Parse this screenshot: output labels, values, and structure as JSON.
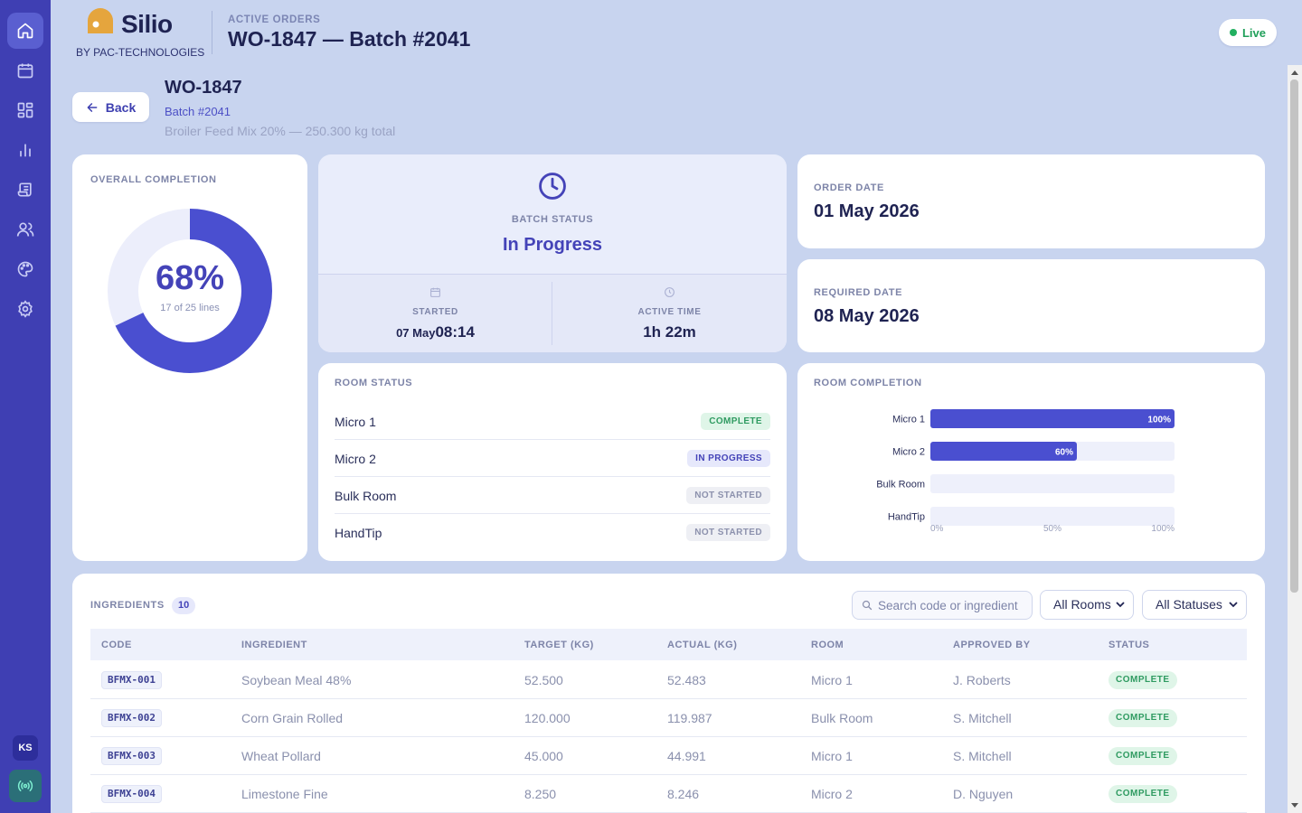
{
  "brand": {
    "name": "Silio",
    "sub": "BY PAC-TECHNOLOGIES",
    "accent": "#4443b8",
    "logo_color": "#e5a53d"
  },
  "header": {
    "kicker": "ACTIVE ORDERS",
    "title": "WO-1847 — Batch #2041",
    "live_label": "Live"
  },
  "sidebar": {
    "items": [
      {
        "icon": "home-icon",
        "active": true
      },
      {
        "icon": "calendar-icon"
      },
      {
        "icon": "dashboard-icon"
      },
      {
        "icon": "bar-chart-icon"
      },
      {
        "icon": "scroll-icon"
      },
      {
        "icon": "users-icon"
      },
      {
        "icon": "palette-icon"
      },
      {
        "icon": "gear-icon"
      }
    ],
    "avatar": "KS",
    "broadcast_icon": "broadcast-icon"
  },
  "order": {
    "back_label": "Back",
    "id": "WO-1847",
    "batch": "Batch #2041",
    "description": "Broiler Feed Mix 20% — 250.300 kg total"
  },
  "completion": {
    "label": "OVERALL COMPLETION",
    "percent": "68%",
    "fraction": 0.68,
    "sub": "17 of 25 lines"
  },
  "batch_status": {
    "label": "BATCH STATUS",
    "value": "In Progress",
    "started_label": "STARTED",
    "started_date": "07 May",
    "started_time": "08:14",
    "active_label": "ACTIVE TIME",
    "active_value": "1h 22m"
  },
  "dates": {
    "order_label": "ORDER DATE",
    "order_value": "01 May 2026",
    "required_label": "REQUIRED DATE",
    "required_value": "08 May 2026"
  },
  "room_status": {
    "label": "ROOM STATUS",
    "rooms": [
      {
        "name": "Micro 1",
        "status": "COMPLETE"
      },
      {
        "name": "Micro 2",
        "status": "IN PROGRESS"
      },
      {
        "name": "Bulk Room",
        "status": "NOT STARTED"
      },
      {
        "name": "HandTip",
        "status": "NOT STARTED"
      }
    ]
  },
  "room_completion": {
    "label": "ROOM COMPLETION",
    "chart_data": {
      "type": "bar",
      "orientation": "horizontal",
      "categories": [
        "Micro 1",
        "Micro 2",
        "Bulk Room",
        "HandTip"
      ],
      "values": [
        100,
        60,
        0,
        0
      ],
      "value_labels": [
        "100%",
        "60%",
        "",
        ""
      ],
      "xlim": [
        0,
        100
      ],
      "x_ticks": [
        "0%",
        "50%",
        "100%"
      ],
      "bar_color": "#4a4fd0",
      "track_color": "#eef0fb"
    }
  },
  "ingredients": {
    "title": "INGREDIENTS",
    "count": "10",
    "search_placeholder": "Search code or ingredient",
    "room_filter": "All Rooms",
    "status_filter": "All Statuses",
    "columns": [
      "CODE",
      "INGREDIENT",
      "TARGET (KG)",
      "ACTUAL (KG)",
      "ROOM",
      "APPROVED BY",
      "STATUS"
    ],
    "rows": [
      {
        "code": "BFMX-001",
        "ingredient": "Soybean Meal 48%",
        "target": "52.500",
        "actual": "52.483",
        "room": "Micro 1",
        "approved": "J. Roberts",
        "status": "COMPLETE"
      },
      {
        "code": "BFMX-002",
        "ingredient": "Corn Grain Rolled",
        "target": "120.000",
        "actual": "119.987",
        "room": "Bulk Room",
        "approved": "S. Mitchell",
        "status": "COMPLETE"
      },
      {
        "code": "BFMX-003",
        "ingredient": "Wheat Pollard",
        "target": "45.000",
        "actual": "44.991",
        "room": "Micro 1",
        "approved": "S. Mitchell",
        "status": "COMPLETE"
      },
      {
        "code": "BFMX-004",
        "ingredient": "Limestone Fine",
        "target": "8.250",
        "actual": "8.246",
        "room": "Micro 2",
        "approved": "D. Nguyen",
        "status": "COMPLETE"
      }
    ]
  }
}
